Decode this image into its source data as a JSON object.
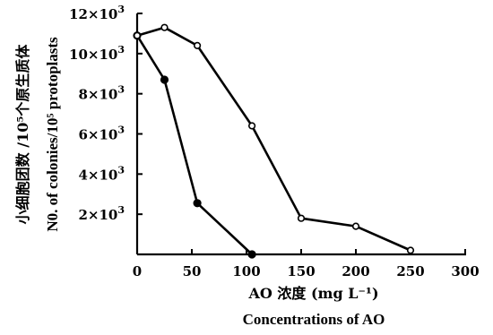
{
  "chart_data": {
    "type": "line",
    "xlabel": "AO 浓度 (mg L⁻¹)",
    "xlabel_en": "Concentrations of AO",
    "ylabel": "小细胞团数 /10⁵个原生质体",
    "ylabel_en": "N0. of colonies/10⁵ protoplasts",
    "xlim": [
      0,
      300
    ],
    "ylim": [
      0,
      12000
    ],
    "x_ticks": [
      0,
      50,
      100,
      150,
      200,
      250,
      300
    ],
    "x_tick_labels": [
      "0",
      "50",
      "100",
      "150",
      "200",
      "250",
      "300"
    ],
    "y_ticks": [
      2000,
      4000,
      6000,
      8000,
      10000,
      12000
    ],
    "y_tick_labels": [
      "2×10³",
      "4×10³",
      "6×10³",
      "8×10³",
      "10×10³",
      "12×10³"
    ],
    "grid": false,
    "series": [
      {
        "marker": "filled-circle",
        "x": [
          0,
          25,
          55,
          105
        ],
        "y": [
          10900,
          8700,
          2550,
          0
        ]
      },
      {
        "marker": "open-circle",
        "x": [
          0,
          25,
          55,
          105,
          150,
          200,
          250
        ],
        "y": [
          10900,
          11300,
          10400,
          6400,
          1800,
          1400,
          200
        ]
      }
    ]
  }
}
